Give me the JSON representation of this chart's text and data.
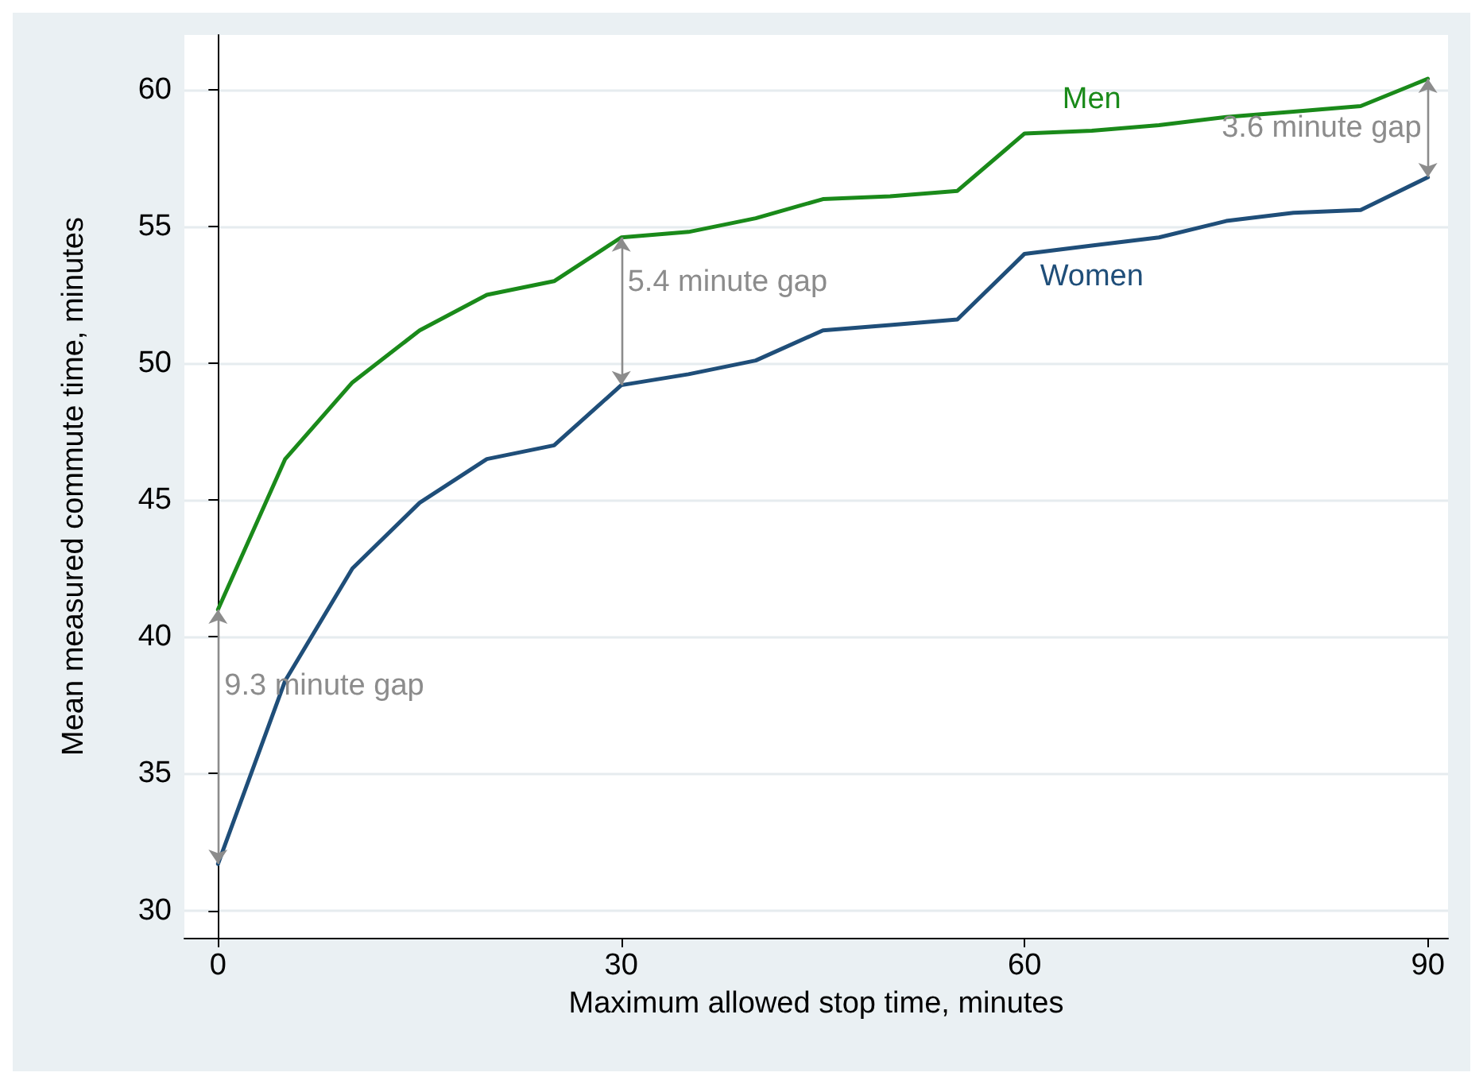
{
  "chart_data": {
    "type": "line",
    "xlabel": "Maximum allowed stop time, minutes",
    "ylabel": "Mean measured commute time, minutes",
    "x": [
      0,
      5,
      10,
      15,
      20,
      25,
      30,
      35,
      40,
      45,
      50,
      55,
      60,
      65,
      70,
      75,
      80,
      85,
      90
    ],
    "series": [
      {
        "name": "Men",
        "color": "#1a8a1a",
        "values": [
          41.0,
          46.5,
          49.3,
          51.2,
          52.5,
          53.0,
          54.6,
          54.8,
          55.3,
          56.0,
          56.1,
          56.3,
          58.4,
          58.5,
          58.7,
          59.0,
          59.2,
          59.4,
          60.4
        ]
      },
      {
        "name": "Women",
        "color": "#1f4e79",
        "values": [
          31.7,
          38.4,
          42.5,
          44.9,
          46.5,
          47.0,
          49.2,
          49.6,
          50.1,
          51.2,
          51.4,
          51.6,
          54.0,
          54.3,
          54.6,
          55.2,
          55.5,
          55.6,
          56.8
        ]
      }
    ],
    "annotations": [
      {
        "text": "9.3 minute gap",
        "x": 0,
        "y": 41.0
      },
      {
        "text": "5.4 minute gap",
        "x": 30,
        "y": 54.6
      },
      {
        "text": "3.6 minute gap",
        "x": 90,
        "y": 60.4
      }
    ],
    "xlim": [
      -2.5,
      91.5
    ],
    "ylim": [
      29,
      62
    ],
    "xticks": [
      0,
      30,
      60,
      90
    ],
    "yticks": [
      30,
      35,
      40,
      45,
      50,
      55,
      60
    ],
    "grid": "y",
    "legend": false,
    "marker": "none",
    "line_style": "solid"
  }
}
